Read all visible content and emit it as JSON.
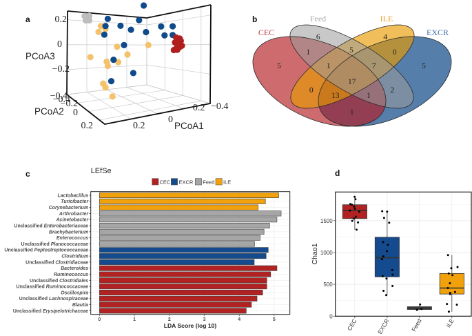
{
  "figure": {
    "panel_labels": [
      "a",
      "b",
      "c",
      "d"
    ]
  },
  "chart_data": [
    {
      "panel": "a",
      "type": "scatter",
      "subtype": "3d",
      "title": "",
      "axes": {
        "x": {
          "label": "PCoA1",
          "ticks": [
            "0.2",
            "0",
            "−0.2",
            "−0.4"
          ]
        },
        "y": {
          "label": "PCoA2",
          "ticks": [
            "−0.4",
            "−0.2",
            "0",
            "0.2"
          ]
        },
        "z": {
          "label": "PCoA3",
          "ticks": [
            "0.2",
            "0",
            "−0.2",
            "−0.4"
          ]
        }
      },
      "ranges": {
        "pcoa1": [
          0.4,
          -0.4
        ],
        "pcoa2": [
          0.3,
          -0.4
        ],
        "pcoa3": [
          -0.4,
          0.27
        ]
      },
      "grid": true,
      "groups": [
        {
          "name": "Feed",
          "color": "#bdbdbd"
        },
        {
          "name": "ILE",
          "color": "#f3c26b"
        },
        {
          "name": "EXCR",
          "color": "#0f4a8a"
        },
        {
          "name": "CEC",
          "color": "#b01e1e"
        }
      ],
      "points": [
        {
          "group": "Feed",
          "pcoa1": 0.41,
          "pcoa3": 0.23
        },
        {
          "group": "Feed",
          "pcoa1": 0.37,
          "pcoa3": 0.23
        },
        {
          "group": "Feed",
          "pcoa1": 0.39,
          "pcoa3": 0.21
        },
        {
          "group": "Feed",
          "pcoa1": 0.4,
          "pcoa3": 0.2
        },
        {
          "group": "Feed",
          "pcoa1": 0.37,
          "pcoa3": 0.2
        },
        {
          "group": "ILE",
          "pcoa1": 0.27,
          "pcoa3": 0.16
        },
        {
          "group": "ILE",
          "pcoa1": 0.23,
          "pcoa3": 0.14
        },
        {
          "group": "ILE",
          "pcoa1": 0.29,
          "pcoa3": 0.12
        },
        {
          "group": "ILE",
          "pcoa1": 0.13,
          "pcoa3": 0.01
        },
        {
          "group": "ILE",
          "pcoa1": -0.14,
          "pcoa3": 0.01
        },
        {
          "group": "ILE",
          "pcoa1": 0.04,
          "pcoa3": -0.05
        },
        {
          "group": "ILE",
          "pcoa1": 0.36,
          "pcoa3": -0.05
        },
        {
          "group": "ILE",
          "pcoa1": 0.22,
          "pcoa3": -0.09
        },
        {
          "group": "ILE",
          "pcoa1": 0.12,
          "pcoa3": -0.1
        },
        {
          "group": "ILE",
          "pcoa1": 0.21,
          "pcoa3": -0.12
        },
        {
          "group": "ILE",
          "pcoa1": 0.25,
          "pcoa3": -0.24
        },
        {
          "group": "ILE",
          "pcoa1": 0.23,
          "pcoa3": -0.27
        },
        {
          "group": "ILE",
          "pcoa1": 0.17,
          "pcoa3": -0.34
        },
        {
          "group": "EXCR",
          "pcoa1": -0.1,
          "pcoa3": 0.31
        },
        {
          "group": "EXCR",
          "pcoa1": 0.21,
          "pcoa3": 0.21
        },
        {
          "group": "EXCR",
          "pcoa1": -0.06,
          "pcoa3": 0.2
        },
        {
          "group": "EXCR",
          "pcoa1": 0.23,
          "pcoa3": 0.16
        },
        {
          "group": "EXCR",
          "pcoa1": 0.1,
          "pcoa3": 0.16
        },
        {
          "group": "EXCR",
          "pcoa1": 0.01,
          "pcoa3": 0.13
        },
        {
          "group": "EXCR",
          "pcoa1": -0.12,
          "pcoa3": 0.11
        },
        {
          "group": "EXCR",
          "pcoa1": 0.24,
          "pcoa3": 0.1
        },
        {
          "group": "EXCR",
          "pcoa1": -0.25,
          "pcoa3": 0.15
        },
        {
          "group": "EXCR",
          "pcoa1": -0.35,
          "pcoa3": 0.15
        },
        {
          "group": "EXCR",
          "pcoa1": -0.28,
          "pcoa3": 0.08
        },
        {
          "group": "EXCR",
          "pcoa1": -0.35,
          "pcoa3": 0.08
        },
        {
          "group": "EXCR",
          "pcoa1": 0.07,
          "pcoa3": 0.02
        },
        {
          "group": "EXCR",
          "pcoa1": 0.16,
          "pcoa3": -0.08
        },
        {
          "group": "EXCR",
          "pcoa1": -0.01,
          "pcoa3": -0.19
        },
        {
          "group": "EXCR",
          "pcoa1": 0.18,
          "pcoa3": -0.23
        },
        {
          "group": "CEC",
          "pcoa1": -0.38,
          "pcoa3": 0.06
        },
        {
          "group": "CEC",
          "pcoa1": -0.41,
          "pcoa3": 0.05
        },
        {
          "group": "CEC",
          "pcoa1": -0.37,
          "pcoa3": 0.02
        },
        {
          "group": "CEC",
          "pcoa1": -0.4,
          "pcoa3": 0.0
        },
        {
          "group": "CEC",
          "pcoa1": -0.43,
          "pcoa3": -0.01
        },
        {
          "group": "CEC",
          "pcoa1": -0.38,
          "pcoa3": -0.03
        },
        {
          "group": "CEC",
          "pcoa1": -0.41,
          "pcoa3": -0.02
        },
        {
          "group": "CEC",
          "pcoa1": -0.39,
          "pcoa3": -0.04
        },
        {
          "group": "CEC",
          "pcoa1": -0.36,
          "pcoa3": -0.04
        },
        {
          "group": "CEC",
          "pcoa1": -0.42,
          "pcoa3": 0.03
        }
      ]
    },
    {
      "panel": "b",
      "type": "venn",
      "title": "",
      "sets": [
        {
          "name": "CEC",
          "label_color": "#be3c46",
          "fill": "#b31b22"
        },
        {
          "name": "Feed",
          "label_color": "#a8a8a8",
          "fill": "#9b9b9b"
        },
        {
          "name": "ILE",
          "label_color": "#f0a030",
          "fill": "#e89b02"
        },
        {
          "name": "EXCR",
          "label_color": "#3f6fa6",
          "fill": "#0e4787"
        }
      ],
      "regions": [
        {
          "sets": [
            "CEC"
          ],
          "count": 5
        },
        {
          "sets": [
            "Feed"
          ],
          "count": 6
        },
        {
          "sets": [
            "ILE"
          ],
          "count": 4
        },
        {
          "sets": [
            "EXCR"
          ],
          "count": 5
        },
        {
          "sets": [
            "CEC",
            "Feed"
          ],
          "count": 1
        },
        {
          "sets": [
            "Feed",
            "ILE"
          ],
          "count": 5
        },
        {
          "sets": [
            "ILE",
            "EXCR"
          ],
          "count": 0
        },
        {
          "sets": [
            "CEC",
            "Feed",
            "ILE"
          ],
          "count": 1
        },
        {
          "sets": [
            "Feed",
            "ILE",
            "EXCR"
          ],
          "count": 7
        },
        {
          "sets": [
            "CEC",
            "Feed",
            "ILE",
            "EXCR"
          ],
          "count": 17
        },
        {
          "sets": [
            "CEC",
            "ILE"
          ],
          "count": 0
        },
        {
          "sets": [
            "CEC",
            "ILE",
            "EXCR"
          ],
          "count": 13
        },
        {
          "sets": [
            "CEC",
            "Feed",
            "EXCR"
          ],
          "count": 1
        },
        {
          "sets": [
            "Feed",
            "EXCR"
          ],
          "count": 2
        },
        {
          "sets": [
            "CEC",
            "EXCR"
          ],
          "count": 1
        }
      ]
    },
    {
      "panel": "c",
      "type": "bar",
      "orientation": "horizontal",
      "title": "LEfSe",
      "xlabel": "LDA Score (log 10)",
      "ylabel": "",
      "xlim": [
        -0.25,
        5.45
      ],
      "xticks": [
        "0",
        "1",
        "2",
        "3",
        "4",
        "5"
      ],
      "grid": true,
      "legend": {
        "position": "top",
        "entries": [
          {
            "name": "CEC",
            "color": "#b22222"
          },
          {
            "name": "EXCR",
            "color": "#134b8e"
          },
          {
            "name": "Feed",
            "color": "#a6a6a6"
          },
          {
            "name": "ILE",
            "color": "#f0a10b"
          }
        ]
      },
      "bars": [
        {
          "prefix": "",
          "taxon": "Lactobacillus",
          "group": "ILE",
          "value": 5.13
        },
        {
          "prefix": "",
          "taxon": "Turicibacter",
          "group": "ILE",
          "value": 4.75
        },
        {
          "prefix": "",
          "taxon": "Corynebacterium",
          "group": "ILE",
          "value": 4.54
        },
        {
          "prefix": "",
          "taxon": "Arthrobacter",
          "group": "Feed",
          "value": 5.2
        },
        {
          "prefix": "",
          "taxon": "Acinetobacter",
          "group": "Feed",
          "value": 5.08
        },
        {
          "prefix": "Unclassified",
          "taxon": "Enterobacteriaceae",
          "group": "Feed",
          "value": 4.87
        },
        {
          "prefix": "",
          "taxon": "Brachybacterium",
          "group": "Feed",
          "value": 4.71
        },
        {
          "prefix": "",
          "taxon": "Enterococcus",
          "group": "Feed",
          "value": 4.6
        },
        {
          "prefix": "Unclassified",
          "taxon": "Planococcaceae",
          "group": "Feed",
          "value": 4.44
        },
        {
          "prefix": "Unclassified",
          "taxon": "Peptostreptococcaceae",
          "group": "EXCR",
          "value": 4.83
        },
        {
          "prefix": "",
          "taxon": "Clostridium",
          "group": "EXCR",
          "value": 4.77
        },
        {
          "prefix": "Unclassified",
          "taxon": "Clostridiaceae",
          "group": "EXCR",
          "value": 4.43
        },
        {
          "prefix": "",
          "taxon": "Bacteroides",
          "group": "CEC",
          "value": 5.08
        },
        {
          "prefix": "",
          "taxon": "Ruminococcus",
          "group": "CEC",
          "value": 4.9
        },
        {
          "prefix": "Unclassified",
          "taxon": "Clostridiales",
          "group": "CEC",
          "value": 4.79
        },
        {
          "prefix": "Unclassified",
          "taxon": "Ruminococcaceae",
          "group": "CEC",
          "value": 4.79
        },
        {
          "prefix": "",
          "taxon": "Oscillospira",
          "group": "CEC",
          "value": 4.67
        },
        {
          "prefix": "Unclassified",
          "taxon": "Lachnospiraceae",
          "group": "CEC",
          "value": 4.51
        },
        {
          "prefix": "",
          "taxon": "Blautia",
          "group": "CEC",
          "value": 4.35
        },
        {
          "prefix": "Unclassified",
          "taxon": "Erysipelotrichaceae",
          "group": "CEC",
          "value": 4.2
        }
      ]
    },
    {
      "panel": "d",
      "type": "box",
      "title": "",
      "xlabel": "",
      "ylabel": "Chao1",
      "ylim": [
        0,
        1950
      ],
      "yticks": [
        0,
        500,
        1000,
        1500
      ],
      "grid": true,
      "categories": [
        "CEC",
        "EXCR",
        "Feed",
        "ILE"
      ],
      "series": [
        {
          "name": "CEC",
          "color": "#b22222",
          "stats": {
            "min": 1359,
            "q1": 1533,
            "median": 1660,
            "q3": 1750,
            "max": 1874
          },
          "points": [
            1874,
            1837,
            1761,
            1750,
            1722,
            1689,
            1660,
            1641,
            1562,
            1533,
            1497,
            1472,
            1359
          ]
        },
        {
          "name": "EXCR",
          "color": "#134b8e",
          "stats": {
            "min": 330,
            "q1": 618,
            "median": 918,
            "q3": 1239,
            "max": 1649
          },
          "points": [
            1649,
            1641,
            1543,
            1467,
            1163,
            1120,
            1022,
            939,
            896,
            725,
            652,
            627,
            591,
            475,
            399,
            330
          ]
        },
        {
          "name": "Feed",
          "color": "#a6a6a6",
          "stats": {
            "min": 98,
            "q1": 106,
            "median": 113,
            "q3": 149,
            "max": 185
          },
          "points": [
            185,
            113,
            98
          ]
        },
        {
          "name": "ILE",
          "color": "#f0a10b",
          "stats": {
            "min": 70,
            "q1": 348,
            "median": 442,
            "q3": 671,
            "max": 960
          },
          "points": [
            960,
            772,
            754,
            671,
            646,
            518,
            442,
            380,
            366,
            348,
            192,
            181,
            70
          ]
        }
      ]
    }
  ]
}
